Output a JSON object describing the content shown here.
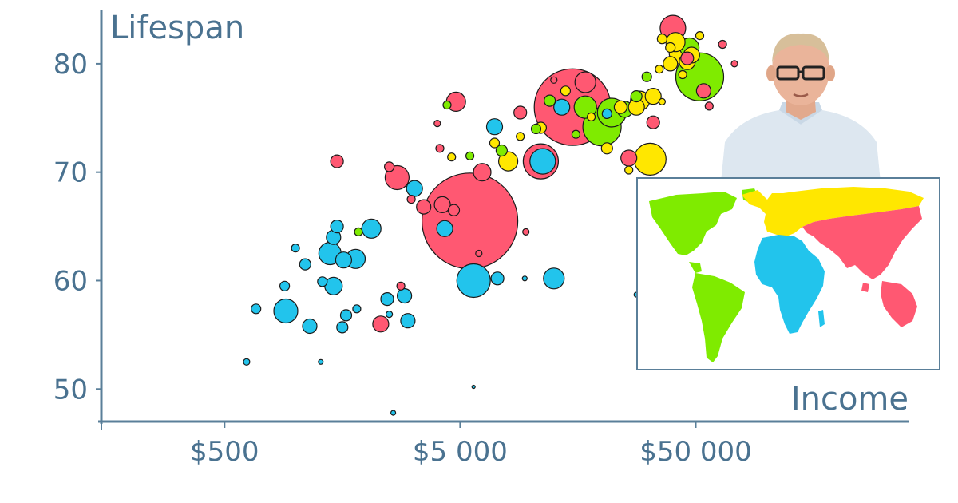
{
  "chart_data": {
    "type": "scatter",
    "title": "",
    "xlabel": "Income",
    "ylabel": "Lifespan",
    "x_scale": "log",
    "xlim": [
      150,
      400000
    ],
    "ylim": [
      47,
      85
    ],
    "xticks": [
      500,
      5000,
      50000
    ],
    "xtick_labels": [
      "$500",
      "$5 000",
      "$50 000"
    ],
    "yticks": [
      50,
      60,
      70,
      80
    ],
    "ytick_labels": [
      "50",
      "60",
      "70",
      "80"
    ],
    "grid": false,
    "legend": "world map inset, bottom-right",
    "region_colors": {
      "africa": "#22c4ec",
      "asia": "#ff5872",
      "americas": "#7feb00",
      "europe": "#ffe700"
    },
    "points": [
      {
        "x": 15000,
        "y": 76,
        "r": 48,
        "region": "asia"
      },
      {
        "x": 5500,
        "y": 65.5,
        "r": 60,
        "region": "asia"
      },
      {
        "x": 2700,
        "y": 69.5,
        "r": 15,
        "region": "asia"
      },
      {
        "x": 4800,
        "y": 76.5,
        "r": 12,
        "region": "asia"
      },
      {
        "x": 6200,
        "y": 70,
        "r": 11,
        "region": "asia"
      },
      {
        "x": 11000,
        "y": 71,
        "r": 22,
        "region": "asia"
      },
      {
        "x": 4200,
        "y": 67,
        "r": 10,
        "region": "asia"
      },
      {
        "x": 1500,
        "y": 71,
        "r": 8,
        "region": "asia"
      },
      {
        "x": 4100,
        "y": 72.2,
        "r": 5,
        "region": "asia"
      },
      {
        "x": 2500,
        "y": 70.5,
        "r": 6,
        "region": "asia"
      },
      {
        "x": 3500,
        "y": 66.8,
        "r": 9,
        "region": "asia"
      },
      {
        "x": 4700,
        "y": 66.5,
        "r": 7,
        "region": "asia"
      },
      {
        "x": 3100,
        "y": 67.5,
        "r": 5,
        "region": "asia"
      },
      {
        "x": 17000,
        "y": 78.3,
        "r": 13,
        "region": "asia"
      },
      {
        "x": 26000,
        "y": 71.3,
        "r": 10,
        "region": "asia"
      },
      {
        "x": 31000,
        "y": 67.5,
        "r": 7,
        "region": "asia"
      },
      {
        "x": 33000,
        "y": 74.6,
        "r": 8,
        "region": "asia"
      },
      {
        "x": 40000,
        "y": 83.3,
        "r": 16,
        "region": "asia"
      },
      {
        "x": 46000,
        "y": 80.5,
        "r": 8,
        "region": "asia"
      },
      {
        "x": 54000,
        "y": 77.5,
        "r": 9,
        "region": "asia"
      },
      {
        "x": 57000,
        "y": 76.1,
        "r": 5,
        "region": "asia"
      },
      {
        "x": 65000,
        "y": 81.8,
        "r": 5,
        "region": "asia"
      },
      {
        "x": 73000,
        "y": 80,
        "r": 4,
        "region": "asia"
      },
      {
        "x": 2300,
        "y": 56,
        "r": 10,
        "region": "asia"
      },
      {
        "x": 2800,
        "y": 59.5,
        "r": 5,
        "region": "asia"
      },
      {
        "x": 4000,
        "y": 74.5,
        "r": 4,
        "region": "asia"
      },
      {
        "x": 9500,
        "y": 64.5,
        "r": 4,
        "region": "asia"
      },
      {
        "x": 12500,
        "y": 78.5,
        "r": 4,
        "region": "asia"
      },
      {
        "x": 9000,
        "y": 75.5,
        "r": 8,
        "region": "asia"
      },
      {
        "x": 6000,
        "y": 62.5,
        "r": 4,
        "region": "asia"
      },
      {
        "x": 1000,
        "y": 63,
        "r": 5,
        "region": "africa"
      },
      {
        "x": 1400,
        "y": 62.5,
        "r": 14,
        "region": "africa"
      },
      {
        "x": 1450,
        "y": 64,
        "r": 9,
        "region": "africa"
      },
      {
        "x": 1600,
        "y": 61.9,
        "r": 10,
        "region": "africa"
      },
      {
        "x": 1800,
        "y": 62,
        "r": 12,
        "region": "africa"
      },
      {
        "x": 1500,
        "y": 65,
        "r": 8,
        "region": "africa"
      },
      {
        "x": 2100,
        "y": 64.8,
        "r": 12,
        "region": "africa"
      },
      {
        "x": 1450,
        "y": 59.5,
        "r": 11,
        "region": "africa"
      },
      {
        "x": 1300,
        "y": 59.9,
        "r": 6,
        "region": "africa"
      },
      {
        "x": 1100,
        "y": 61.5,
        "r": 7,
        "region": "africa"
      },
      {
        "x": 900,
        "y": 59.5,
        "r": 6,
        "region": "africa"
      },
      {
        "x": 910,
        "y": 57.2,
        "r": 15,
        "region": "africa"
      },
      {
        "x": 680,
        "y": 57.4,
        "r": 6,
        "region": "africa"
      },
      {
        "x": 1150,
        "y": 55.8,
        "r": 9,
        "region": "africa"
      },
      {
        "x": 1580,
        "y": 55.7,
        "r": 7,
        "region": "africa"
      },
      {
        "x": 1640,
        "y": 56.8,
        "r": 7,
        "region": "africa"
      },
      {
        "x": 1820,
        "y": 57.4,
        "r": 5,
        "region": "africa"
      },
      {
        "x": 2500,
        "y": 56.9,
        "r": 4,
        "region": "africa"
      },
      {
        "x": 2450,
        "y": 58.3,
        "r": 8,
        "region": "africa"
      },
      {
        "x": 2900,
        "y": 58.6,
        "r": 9,
        "region": "africa"
      },
      {
        "x": 3000,
        "y": 56.3,
        "r": 9,
        "region": "africa"
      },
      {
        "x": 620,
        "y": 52.5,
        "r": 4,
        "region": "africa"
      },
      {
        "x": 1280,
        "y": 52.5,
        "r": 3,
        "region": "africa"
      },
      {
        "x": 2600,
        "y": 47.8,
        "r": 3,
        "region": "africa"
      },
      {
        "x": 5700,
        "y": 50.2,
        "r": 2,
        "region": "africa"
      },
      {
        "x": 3200,
        "y": 68.5,
        "r": 10,
        "region": "africa"
      },
      {
        "x": 4300,
        "y": 64.8,
        "r": 10,
        "region": "africa"
      },
      {
        "x": 5700,
        "y": 60,
        "r": 21,
        "region": "africa"
      },
      {
        "x": 7200,
        "y": 60.2,
        "r": 8,
        "region": "africa"
      },
      {
        "x": 9400,
        "y": 60.2,
        "r": 3,
        "region": "africa"
      },
      {
        "x": 12500,
        "y": 60.2,
        "r": 13,
        "region": "africa"
      },
      {
        "x": 11200,
        "y": 71,
        "r": 16,
        "region": "africa"
      },
      {
        "x": 7000,
        "y": 74.2,
        "r": 10,
        "region": "africa"
      },
      {
        "x": 13500,
        "y": 76,
        "r": 10,
        "region": "africa"
      },
      {
        "x": 21000,
        "y": 75.4,
        "r": 6,
        "region": "africa"
      },
      {
        "x": 28000,
        "y": 58.7,
        "r": 3,
        "region": "africa"
      },
      {
        "x": 17000,
        "y": 76,
        "r": 14,
        "region": "americas"
      },
      {
        "x": 22000,
        "y": 75.5,
        "r": 18,
        "region": "americas"
      },
      {
        "x": 20000,
        "y": 74.2,
        "r": 24,
        "region": "americas"
      },
      {
        "x": 25000,
        "y": 75.8,
        "r": 10,
        "region": "americas"
      },
      {
        "x": 12000,
        "y": 76.6,
        "r": 7,
        "region": "americas"
      },
      {
        "x": 10500,
        "y": 74,
        "r": 6,
        "region": "americas"
      },
      {
        "x": 28000,
        "y": 77,
        "r": 7,
        "region": "americas"
      },
      {
        "x": 31000,
        "y": 78.8,
        "r": 6,
        "region": "americas"
      },
      {
        "x": 4400,
        "y": 76.2,
        "r": 5,
        "region": "americas"
      },
      {
        "x": 5500,
        "y": 71.5,
        "r": 5,
        "region": "americas"
      },
      {
        "x": 7500,
        "y": 72,
        "r": 7,
        "region": "americas"
      },
      {
        "x": 52000,
        "y": 78.8,
        "r": 30,
        "region": "americas"
      },
      {
        "x": 47000,
        "y": 81.5,
        "r": 12,
        "region": "americas"
      },
      {
        "x": 1850,
        "y": 64.5,
        "r": 5,
        "region": "americas"
      },
      {
        "x": 15500,
        "y": 73.5,
        "r": 5,
        "region": "americas"
      },
      {
        "x": 39000,
        "y": 81.5,
        "r": 6,
        "region": "europe"
      },
      {
        "x": 41000,
        "y": 82,
        "r": 12,
        "region": "europe"
      },
      {
        "x": 43000,
        "y": 81,
        "r": 14,
        "region": "europe"
      },
      {
        "x": 46000,
        "y": 80.2,
        "r": 10,
        "region": "europe"
      },
      {
        "x": 48000,
        "y": 80.8,
        "r": 10,
        "region": "europe"
      },
      {
        "x": 36000,
        "y": 82.3,
        "r": 6,
        "region": "europe"
      },
      {
        "x": 39000,
        "y": 80,
        "r": 9,
        "region": "europe"
      },
      {
        "x": 44000,
        "y": 79,
        "r": 5,
        "region": "europe"
      },
      {
        "x": 52000,
        "y": 82.6,
        "r": 5,
        "region": "europe"
      },
      {
        "x": 28000,
        "y": 76,
        "r": 10,
        "region": "europe"
      },
      {
        "x": 29000,
        "y": 76.6,
        "r": 12,
        "region": "europe"
      },
      {
        "x": 33000,
        "y": 77,
        "r": 10,
        "region": "europe"
      },
      {
        "x": 32000,
        "y": 71.2,
        "r": 20,
        "region": "europe"
      },
      {
        "x": 21000,
        "y": 72.2,
        "r": 7,
        "region": "europe"
      },
      {
        "x": 26000,
        "y": 70.2,
        "r": 5,
        "region": "europe"
      },
      {
        "x": 35000,
        "y": 79.5,
        "r": 5,
        "region": "europe"
      },
      {
        "x": 36000,
        "y": 76.5,
        "r": 4,
        "region": "europe"
      },
      {
        "x": 8000,
        "y": 71,
        "r": 12,
        "region": "europe"
      },
      {
        "x": 7000,
        "y": 72.7,
        "r": 6,
        "region": "europe"
      },
      {
        "x": 9000,
        "y": 73.3,
        "r": 5,
        "region": "europe"
      },
      {
        "x": 11000,
        "y": 74.1,
        "r": 7,
        "region": "europe"
      },
      {
        "x": 24000,
        "y": 76,
        "r": 8,
        "region": "europe"
      },
      {
        "x": 14000,
        "y": 77.5,
        "r": 6,
        "region": "europe"
      },
      {
        "x": 4600,
        "y": 71.4,
        "r": 5,
        "region": "europe"
      },
      {
        "x": 18000,
        "y": 75.1,
        "r": 5,
        "region": "europe"
      }
    ]
  }
}
